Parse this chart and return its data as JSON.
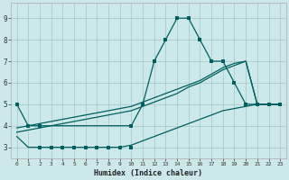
{
  "xlabel": "Humidex (Indice chaleur)",
  "bg_color": "#cce8e8",
  "grid_color": "#aacccc",
  "line_color": "#006060",
  "xlim": [
    -0.5,
    23.5
  ],
  "ylim": [
    2.5,
    9.7
  ],
  "xticks": [
    0,
    1,
    2,
    3,
    4,
    5,
    6,
    7,
    8,
    9,
    10,
    11,
    12,
    13,
    14,
    15,
    16,
    17,
    18,
    19,
    20,
    21,
    22,
    23
  ],
  "yticks": [
    3,
    4,
    5,
    6,
    7,
    8,
    9
  ],
  "line1_x": [
    0,
    1,
    2,
    3,
    4,
    5,
    6,
    7,
    8,
    9,
    10,
    11,
    12,
    13,
    14,
    15,
    16,
    17,
    18,
    19,
    20,
    21,
    22,
    23
  ],
  "line1_y": [
    5.0,
    4.0,
    4.0,
    4.0,
    4.0,
    4.0,
    4.0,
    4.0,
    4.0,
    4.0,
    4.0,
    5.0,
    7.0,
    8.0,
    9.0,
    9.0,
    8.0,
    7.0,
    7.0,
    6.0,
    5.0,
    5.0,
    5.0,
    5.0
  ],
  "line1_markers_x": [
    0,
    1,
    2,
    10,
    11,
    12,
    13,
    14,
    15,
    16,
    17,
    18,
    19,
    20,
    21,
    22,
    23
  ],
  "line1_markers_y": [
    5.0,
    4.0,
    4.0,
    4.0,
    5.0,
    7.0,
    8.0,
    9.0,
    9.0,
    8.0,
    7.0,
    7.0,
    6.0,
    5.0,
    5.0,
    5.0,
    5.0
  ],
  "line2_x": [
    0,
    1,
    2,
    3,
    4,
    5,
    6,
    7,
    8,
    9,
    10,
    11,
    12,
    13,
    14,
    15,
    16,
    17,
    18,
    19,
    20,
    21,
    22,
    23
  ],
  "line2_y": [
    3.7,
    3.8,
    3.9,
    4.0,
    4.1,
    4.2,
    4.3,
    4.4,
    4.5,
    4.6,
    4.7,
    4.9,
    5.1,
    5.3,
    5.5,
    5.8,
    6.0,
    6.3,
    6.6,
    6.8,
    7.0,
    5.0,
    5.0,
    5.0
  ],
  "line3_x": [
    0,
    1,
    2,
    3,
    4,
    5,
    6,
    7,
    8,
    9,
    10,
    11,
    12,
    13,
    14,
    15,
    16,
    17,
    18,
    19,
    20,
    21,
    22,
    23
  ],
  "line3_y": [
    3.9,
    4.0,
    4.1,
    4.2,
    4.3,
    4.4,
    4.5,
    4.6,
    4.7,
    4.8,
    4.9,
    5.1,
    5.3,
    5.5,
    5.7,
    5.9,
    6.1,
    6.4,
    6.7,
    6.9,
    7.0,
    5.0,
    5.0,
    5.0
  ],
  "line4_x": [
    0,
    1,
    2,
    3,
    4,
    5,
    6,
    7,
    8,
    9,
    10,
    11,
    12,
    13,
    14,
    15,
    16,
    17,
    18,
    19,
    20,
    21,
    22,
    23
  ],
  "line4_y": [
    3.5,
    3.0,
    3.0,
    3.0,
    3.0,
    3.0,
    3.0,
    3.0,
    3.0,
    3.0,
    3.1,
    3.3,
    3.5,
    3.7,
    3.9,
    4.1,
    4.3,
    4.5,
    4.7,
    4.8,
    4.9,
    5.0,
    5.0,
    5.0
  ],
  "line4_markers_x": [
    2,
    3,
    4,
    5,
    6,
    7,
    8,
    9,
    10
  ],
  "line4_markers_y": [
    3.0,
    3.0,
    3.0,
    3.0,
    3.0,
    3.0,
    3.0,
    3.0,
    3.0
  ]
}
